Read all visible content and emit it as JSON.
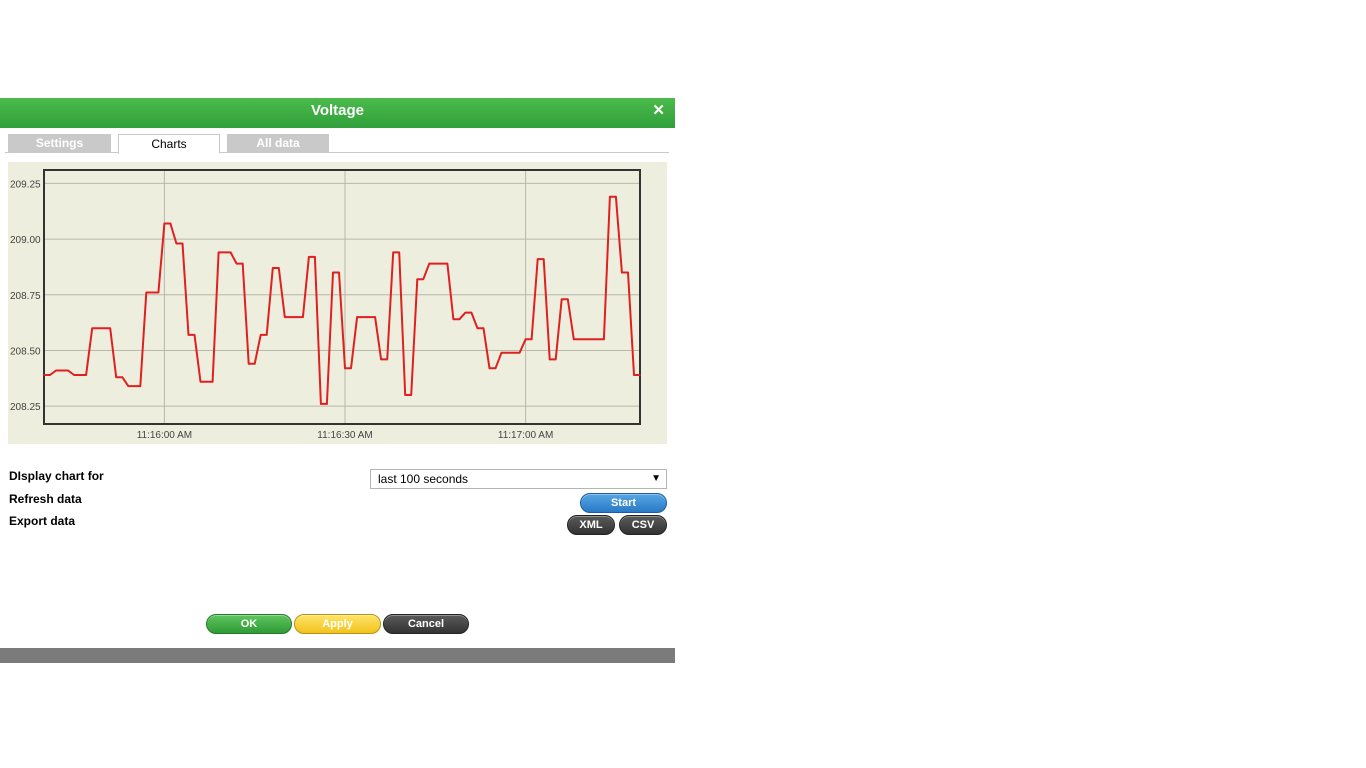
{
  "dialog": {
    "title": "Voltage",
    "close_icon": "close-icon"
  },
  "tabs": [
    {
      "label": "Settings",
      "active": false
    },
    {
      "label": "Charts",
      "active": true
    },
    {
      "label": "All data",
      "active": false
    }
  ],
  "chart_data": {
    "type": "line",
    "title": "",
    "xlabel": "",
    "ylabel": "",
    "grid": true,
    "color": "#e02020",
    "background": "#eeeedf",
    "x_tick_labels": [
      "11:16:00 AM",
      "11:16:30 AM",
      "11:17:00 AM"
    ],
    "x_tick_seconds": [
      0,
      30,
      60
    ],
    "y_ticks": [
      209.25,
      209.0,
      208.75,
      208.5,
      208.25
    ],
    "y_tick_labels": [
      "209.25",
      "209.00",
      "208.75",
      "208.50",
      "208.25"
    ],
    "xlim_seconds": [
      -20,
      79
    ],
    "ylim": [
      208.17,
      209.31
    ],
    "series": [
      {
        "x": [
          -20,
          -19,
          -18,
          -17,
          -16,
          -15,
          -14,
          -13,
          -12,
          -11,
          -10,
          -9,
          -8,
          -7,
          -6,
          -5,
          -4,
          -3,
          -2,
          -1,
          0,
          1,
          2,
          3,
          4,
          5,
          6,
          7,
          8,
          9,
          10,
          11,
          12,
          13,
          14,
          15,
          16,
          17,
          18,
          19,
          20,
          21,
          22,
          23,
          24,
          25,
          26,
          27,
          28,
          29,
          30,
          31,
          32,
          33,
          34,
          35,
          36,
          37,
          38,
          39,
          40,
          41,
          42,
          43,
          44,
          45,
          46,
          47,
          48,
          49,
          50,
          51,
          52,
          53,
          54,
          55,
          56,
          57,
          58,
          59,
          60,
          61,
          62,
          63,
          64,
          65,
          66,
          67,
          68,
          69,
          70,
          71,
          72,
          73,
          74,
          75,
          76,
          77,
          78,
          79
        ],
        "values": [
          208.39,
          208.39,
          208.41,
          208.41,
          208.41,
          208.39,
          208.39,
          208.39,
          208.6,
          208.6,
          208.6,
          208.6,
          208.38,
          208.38,
          208.34,
          208.34,
          208.34,
          208.76,
          208.76,
          208.76,
          209.07,
          209.07,
          208.98,
          208.98,
          208.57,
          208.57,
          208.36,
          208.36,
          208.36,
          208.94,
          208.94,
          208.94,
          208.89,
          208.89,
          208.44,
          208.44,
          208.57,
          208.57,
          208.87,
          208.87,
          208.65,
          208.65,
          208.65,
          208.65,
          208.92,
          208.92,
          208.26,
          208.26,
          208.85,
          208.85,
          208.42,
          208.42,
          208.65,
          208.65,
          208.65,
          208.65,
          208.46,
          208.46,
          208.94,
          208.94,
          208.3,
          208.3,
          208.82,
          208.82,
          208.89,
          208.89,
          208.89,
          208.89,
          208.64,
          208.64,
          208.67,
          208.67,
          208.6,
          208.6,
          208.42,
          208.42,
          208.49,
          208.49,
          208.49,
          208.49,
          208.55,
          208.55,
          208.91,
          208.91,
          208.46,
          208.46,
          208.73,
          208.73,
          208.55,
          208.55,
          208.55,
          208.55,
          208.55,
          208.55,
          209.19,
          209.19,
          208.85,
          208.85,
          208.39,
          208.39
        ]
      }
    ]
  },
  "controls": {
    "display_label": "DIsplay chart for",
    "display_value": "last 100 seconds",
    "dropdown_icon": "dropdown-arrow-icon",
    "refresh_label": "Refresh data",
    "start_label": "Start",
    "export_label": "Export data",
    "xml_label": "XML",
    "csv_label": "CSV"
  },
  "buttons": {
    "ok": "OK",
    "apply": "Apply",
    "cancel": "Cancel"
  }
}
